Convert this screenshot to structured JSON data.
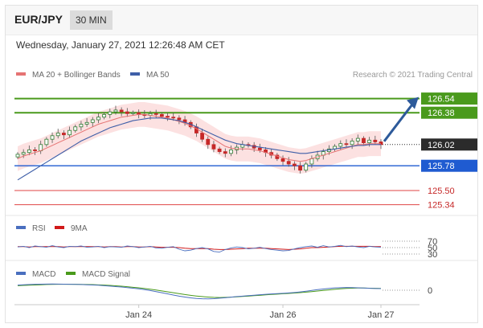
{
  "header": {
    "pair": "EUR/JPY",
    "timeframe": "30 MIN"
  },
  "datetime": "Wednesday, January 27, 2021 12:26:48 AM CET",
  "legend": {
    "ma20_label": "MA 20 + Bollinger Bands",
    "ma50_label": "MA 50",
    "credit": "Research © 2021 Trading Central"
  },
  "colors": {
    "up": "#2e7d32",
    "down": "#c62828",
    "ma20": "#e57373",
    "ma50": "#3f5fa8",
    "band_fill": "#f9c8c8",
    "resistance": "#4a9a1c",
    "support": "#1f5bd1",
    "target": "#e04646",
    "arrow": "#2d5a9a",
    "price": "#2b2b2b"
  },
  "chart_data": [
    {
      "type": "line",
      "name": "price",
      "x_labels": [
        "Jan 24",
        "Jan 26",
        "Jan 27"
      ],
      "ylim": [
        125.2,
        126.7
      ],
      "levels": [
        {
          "value": "126.54",
          "kind": "resistance"
        },
        {
          "value": "126.38",
          "kind": "resistance"
        },
        {
          "value": "126.02",
          "kind": "current"
        },
        {
          "value": "125.78",
          "kind": "support"
        },
        {
          "value": "125.50",
          "kind": "target"
        },
        {
          "value": "125.34",
          "kind": "target"
        }
      ],
      "close": [
        125.91,
        125.93,
        125.96,
        125.95,
        126.02,
        126.08,
        126.12,
        126.15,
        126.13,
        126.18,
        126.22,
        126.25,
        126.27,
        126.3,
        126.33,
        126.36,
        126.39,
        126.41,
        126.39,
        126.37,
        126.38,
        126.36,
        126.35,
        126.37,
        126.36,
        126.34,
        126.33,
        126.32,
        126.3,
        126.27,
        126.22,
        126.15,
        126.08,
        126.02,
        125.97,
        125.94,
        125.92,
        125.96,
        125.99,
        126.02,
        126.01,
        125.98,
        125.96,
        125.93,
        125.9,
        125.86,
        125.83,
        125.8,
        125.78,
        125.73,
        125.8,
        125.86,
        125.9,
        125.94,
        125.97,
        126.0,
        126.03,
        126.02,
        126.06,
        126.09,
        126.04,
        126.07,
        126.05,
        126.02
      ],
      "ma20": [
        125.86,
        125.89,
        125.91,
        125.93,
        125.95,
        125.98,
        126.01,
        126.04,
        126.07,
        126.1,
        126.13,
        126.16,
        126.19,
        126.22,
        126.25,
        126.27,
        126.29,
        126.31,
        126.33,
        126.34,
        126.35,
        126.36,
        126.36,
        126.35,
        126.34,
        126.33,
        126.32,
        126.3,
        126.28,
        126.26,
        126.23,
        126.2,
        126.16,
        126.12,
        126.08,
        126.04,
        126.0,
        125.98,
        125.97,
        125.97,
        125.97,
        125.96,
        125.95,
        125.93,
        125.91,
        125.89,
        125.87,
        125.85,
        125.84,
        125.83,
        125.84,
        125.86,
        125.88,
        125.9,
        125.92,
        125.94,
        125.96,
        125.98,
        126.0,
        126.02,
        126.02,
        126.03,
        126.03,
        126.03
      ],
      "ma50": [
        125.62,
        125.66,
        125.7,
        125.74,
        125.78,
        125.82,
        125.86,
        125.9,
        125.94,
        125.98,
        126.02,
        126.06,
        126.09,
        126.12,
        126.15,
        126.18,
        126.21,
        126.23,
        126.25,
        126.27,
        126.29,
        126.3,
        126.31,
        126.32,
        126.32,
        126.32,
        126.31,
        126.3,
        126.29,
        126.27,
        126.25,
        126.22,
        126.19,
        126.16,
        126.13,
        126.1,
        126.07,
        126.05,
        126.03,
        126.02,
        126.01,
        126.0,
        125.99,
        125.98,
        125.97,
        125.96,
        125.95,
        125.94,
        125.93,
        125.92,
        125.92,
        125.93,
        125.94,
        125.95,
        125.96,
        125.97,
        125.98,
        125.99,
        126.0,
        126.01,
        126.01,
        126.02,
        126.02,
        126.02
      ],
      "band_width": 0.14
    },
    {
      "type": "line",
      "name": "RSI",
      "legend": [
        "RSI",
        "9MA"
      ],
      "ticks": [
        "70",
        "50",
        "30"
      ],
      "ylim": [
        20,
        80
      ],
      "rsi": [
        52,
        54,
        50,
        55,
        53,
        51,
        56,
        52,
        50,
        54,
        53,
        55,
        51,
        52,
        54,
        50,
        53,
        52,
        51,
        55,
        53,
        50,
        52,
        54,
        49,
        48,
        51,
        53,
        45,
        40,
        42,
        47,
        50,
        46,
        38,
        36,
        44,
        49,
        52,
        50,
        46,
        48,
        51,
        47,
        44,
        42,
        40,
        41,
        46,
        50,
        53,
        55,
        51,
        56,
        52,
        54,
        57,
        53,
        55,
        52,
        50,
        54,
        52,
        51
      ],
      "ma9": [
        53,
        53,
        52,
        53,
        53,
        53,
        53,
        53,
        52,
        53,
        53,
        53,
        53,
        53,
        53,
        52,
        53,
        53,
        52,
        53,
        53,
        52,
        52,
        53,
        52,
        51,
        51,
        51,
        50,
        48,
        47,
        47,
        47,
        47,
        45,
        44,
        44,
        45,
        46,
        47,
        48,
        48,
        48,
        48,
        47,
        46,
        45,
        44,
        45,
        46,
        48,
        50,
        50,
        51,
        52,
        53,
        54,
        54,
        54,
        54,
        54,
        54,
        53,
        53
      ]
    },
    {
      "type": "line",
      "name": "MACD",
      "legend": [
        "MACD",
        "MACD Signal"
      ],
      "ticks": [
        "0"
      ],
      "ylim": [
        -0.12,
        0.12
      ],
      "macd": [
        0.045,
        0.048,
        0.05,
        0.052,
        0.053,
        0.054,
        0.055,
        0.054,
        0.053,
        0.052,
        0.051,
        0.05,
        0.048,
        0.046,
        0.044,
        0.04,
        0.036,
        0.032,
        0.028,
        0.023,
        0.018,
        0.012,
        0.005,
        -0.003,
        -0.012,
        -0.022,
        -0.032,
        -0.042,
        -0.052,
        -0.06,
        -0.067,
        -0.072,
        -0.075,
        -0.076,
        -0.074,
        -0.07,
        -0.066,
        -0.061,
        -0.056,
        -0.052,
        -0.048,
        -0.044,
        -0.04,
        -0.036,
        -0.033,
        -0.03,
        -0.027,
        -0.024,
        -0.02,
        -0.015,
        -0.009,
        -0.002,
        0.005,
        0.011,
        0.016,
        0.02,
        0.022,
        0.024,
        0.023,
        0.021,
        0.019,
        0.017,
        0.015,
        0.014
      ],
      "signal": [
        0.04,
        0.042,
        0.044,
        0.046,
        0.048,
        0.05,
        0.051,
        0.052,
        0.052,
        0.052,
        0.052,
        0.051,
        0.05,
        0.049,
        0.047,
        0.045,
        0.042,
        0.039,
        0.035,
        0.031,
        0.026,
        0.021,
        0.015,
        0.009,
        0.002,
        -0.006,
        -0.014,
        -0.022,
        -0.03,
        -0.038,
        -0.045,
        -0.051,
        -0.056,
        -0.06,
        -0.063,
        -0.064,
        -0.063,
        -0.061,
        -0.058,
        -0.055,
        -0.052,
        -0.048,
        -0.045,
        -0.041,
        -0.037,
        -0.034,
        -0.031,
        -0.028,
        -0.025,
        -0.021,
        -0.017,
        -0.012,
        -0.007,
        -0.002,
        0.003,
        0.008,
        0.012,
        0.016,
        0.018,
        0.019,
        0.019,
        0.018,
        0.017,
        0.016
      ]
    }
  ]
}
